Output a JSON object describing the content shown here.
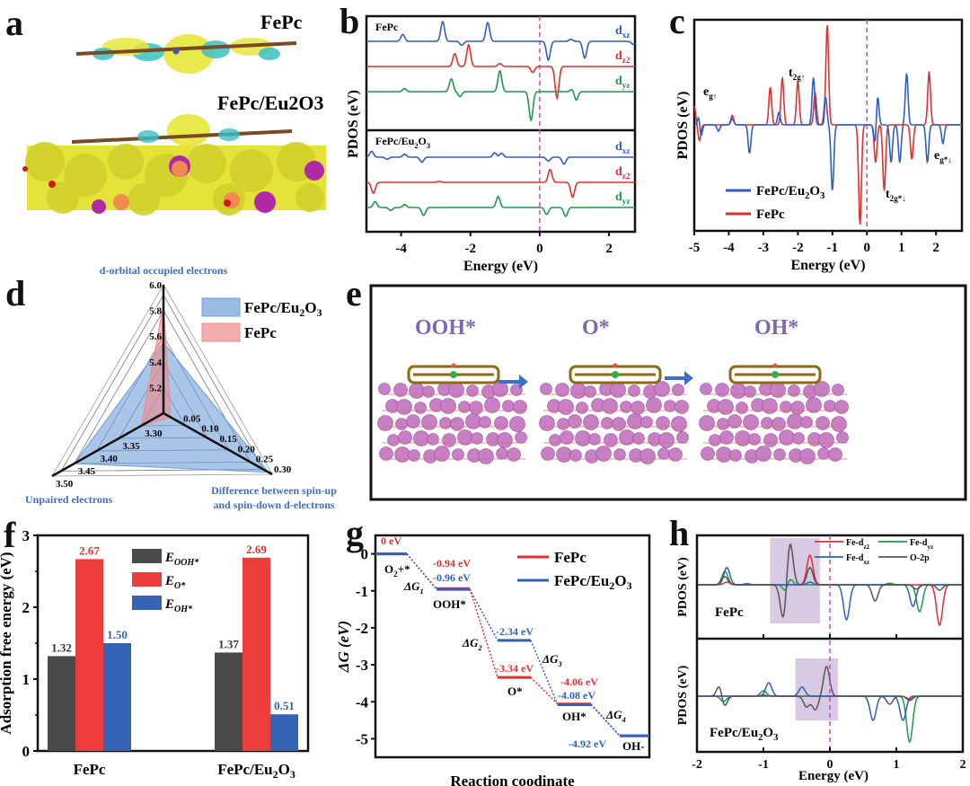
{
  "figure": {
    "panels": [
      "a",
      "b",
      "c",
      "d",
      "e",
      "f",
      "g",
      "h"
    ]
  },
  "panel_a": {
    "letter": "a",
    "labels": [
      "FePc",
      "FePc/Eu2O3"
    ],
    "description": "Charge density difference isosurfaces of FePc and FePc/Eu2O3"
  },
  "panel_e": {
    "letter": "e",
    "states": [
      "OOH*",
      "O*",
      "OH*"
    ],
    "title_color": "#7b68b5",
    "arrow_color": "#3e6fc1"
  },
  "chart_data": [
    {
      "panel": "b",
      "letter": "b",
      "type": "line",
      "title": "",
      "xlabel": "Energy (eV)",
      "ylabel": "PDOS (eV)",
      "xlim": [
        -5,
        2.75
      ],
      "xticks": [
        -4,
        -2,
        0,
        2
      ],
      "xtick_labels": [
        "-4",
        "-2",
        "0",
        "2"
      ],
      "fermi_level": 0,
      "subplots": [
        {
          "name": "FePc",
          "series": [
            {
              "name": "dxz",
              "sub": "xz",
              "color": "#2f5fbf",
              "peaks": [
                [
                  -3.95,
                  0.35
                ],
                [
                  -2.8,
                  1.0
                ],
                [
                  -2.25,
                  -0.2
                ],
                [
                  -1.5,
                  0.95
                ],
                [
                  0.25,
                  -0.95
                ],
                [
                  0.9,
                  0.1
                ],
                [
                  1.3,
                  -0.85
                ],
                [
                  2.7,
                  -0.15
                ]
              ]
            },
            {
              "name": "dz2",
              "sub": "z2",
              "color": "#e03030",
              "peaks": [
                [
                  -2.45,
                  0.65
                ],
                [
                  -2.05,
                  1.1
                ],
                [
                  -1.15,
                  0.15
                ],
                [
                  -0.2,
                  -0.3
                ],
                [
                  0.5,
                  -1.6
                ]
              ]
            },
            {
              "name": "dyz",
              "sub": "yz",
              "color": "#1f9a4a",
              "peaks": [
                [
                  -3.9,
                  0.15
                ],
                [
                  -2.55,
                  0.65
                ],
                [
                  -2.3,
                  -0.25
                ],
                [
                  -1.15,
                  1.05
                ],
                [
                  -0.25,
                  -1.45
                ],
                [
                  0.95,
                  0.15
                ],
                [
                  1.05,
                  -0.45
                ]
              ]
            }
          ]
        },
        {
          "name": "FePc/Eu2O3",
          "series": [
            {
              "name": "dxz",
              "sub": "xz",
              "color": "#2f5fbf",
              "peaks": [
                [
                  -4.85,
                  0.3
                ],
                [
                  -4.4,
                  -0.1
                ],
                [
                  -3.9,
                  0.15
                ],
                [
                  -3.4,
                  -0.25
                ],
                [
                  -1.3,
                  0.22
                ],
                [
                  -1.1,
                  0.2
                ],
                [
                  0.25,
                  -0.2
                ],
                [
                  0.7,
                  -0.35
                ]
              ]
            },
            {
              "name": "dz2",
              "sub": "z2",
              "color": "#e03030",
              "peaks": [
                [
                  -4.8,
                  -0.55
                ],
                [
                  -2.9,
                  0.05
                ],
                [
                  0.3,
                  0.65
                ],
                [
                  0.95,
                  -0.75
                ]
              ]
            },
            {
              "name": "dyz",
              "sub": "yz",
              "color": "#1f9a4a",
              "peaks": [
                [
                  -4.75,
                  0.3
                ],
                [
                  -4.3,
                  -0.15
                ],
                [
                  -3.9,
                  0.15
                ],
                [
                  -3.35,
                  -0.4
                ],
                [
                  -1.2,
                  0.55
                ],
                [
                  0.2,
                  -0.35
                ],
                [
                  0.75,
                  -0.45
                ]
              ]
            }
          ]
        }
      ]
    },
    {
      "panel": "c",
      "letter": "c",
      "type": "line",
      "xlabel": "Energy (eV)",
      "ylabel": "PDOS (eV)",
      "xlim": [
        -5,
        2.75
      ],
      "xticks": [
        -5,
        -4,
        -3,
        -2,
        -1,
        0,
        1,
        2
      ],
      "xtick_labels": [
        "-5",
        "-4",
        "-3",
        "-2",
        "-1",
        "0",
        "1",
        "2"
      ],
      "fermi_level": 0,
      "legend": {
        "position": "bottom-left",
        "entries": [
          "FePc/Eu2O3",
          "FePc"
        ]
      },
      "annotations": [
        "eg↑",
        "t2g↑",
        "eg*↓",
        "t2g*↓"
      ],
      "series": [
        {
          "name": "FePc/Eu2O3",
          "color": "#2f5fbf",
          "peaks": [
            [
              -4.85,
              0.3
            ],
            [
              -4.82,
              -0.35
            ],
            [
              -4.3,
              -0.1
            ],
            [
              -3.9,
              0.1
            ],
            [
              -3.4,
              -0.45
            ],
            [
              -2.55,
              0.2
            ],
            [
              -1.55,
              0.75
            ],
            [
              -1.2,
              0.45
            ],
            [
              -1.0,
              -1.05
            ],
            [
              0.25,
              -0.45
            ],
            [
              0.3,
              0.6
            ],
            [
              0.7,
              -0.6
            ],
            [
              0.95,
              -0.6
            ],
            [
              1.15,
              0.82
            ],
            [
              1.75,
              -0.6
            ],
            [
              2.2,
              -0.3
            ]
          ]
        },
        {
          "name": "FePc",
          "color": "#e03030",
          "peaks": [
            [
              -5.0,
              0.3
            ],
            [
              -4.85,
              -0.25
            ],
            [
              -3.9,
              0.15
            ],
            [
              -2.8,
              0.6
            ],
            [
              -2.45,
              0.75
            ],
            [
              -2.0,
              0.7
            ],
            [
              -1.5,
              0.5
            ],
            [
              -1.15,
              1.6
            ],
            [
              -0.2,
              -1.6
            ],
            [
              0.25,
              -0.6
            ],
            [
              0.5,
              -1.05
            ],
            [
              1.3,
              -0.55
            ],
            [
              1.8,
              0.85
            ]
          ]
        }
      ]
    },
    {
      "panel": "d",
      "letter": "d",
      "type": "radar",
      "axes": [
        {
          "name": "d-orbital occupied electrons",
          "range": [
            5.0,
            6.0
          ],
          "ticks": [
            "5.2",
            "5.4",
            "5.6",
            "5.8",
            "6.0"
          ]
        },
        {
          "name": "Difference between spin-up and spin-down d-electrons",
          "range": [
            0.0,
            0.3
          ],
          "ticks": [
            "0.05",
            "0.10",
            "0.15",
            "0.20",
            "0.25",
            "0.30"
          ]
        },
        {
          "name": "Unpaired electrons",
          "range": [
            3.25,
            3.5
          ],
          "ticks": [
            "3.30",
            "3.35",
            "3.40",
            "3.45",
            "3.50"
          ]
        }
      ],
      "axis_label_color": "#3e6fc1",
      "series": [
        {
          "name": "FePc/Eu2O3",
          "color": "#6f9fd8",
          "values": [
            5.55,
            0.29,
            3.45
          ]
        },
        {
          "name": "FePc",
          "color": "#f08a8a",
          "values": [
            5.85,
            0.02,
            3.3
          ]
        }
      ],
      "legend": {
        "position": "top-right",
        "entries": [
          "FePc/Eu2O3",
          "FePc"
        ]
      }
    },
    {
      "panel": "f",
      "letter": "f",
      "type": "bar",
      "ylabel": "Adsorption free energy (eV)",
      "ylim": [
        0,
        3
      ],
      "yticks": [
        "0",
        "1",
        "2",
        "3"
      ],
      "categories": [
        "FePc",
        "FePc/Eu2O3"
      ],
      "legend": {
        "position": "top-center",
        "entries": [
          "E_OOH*",
          "E_O*",
          "E_OH*"
        ]
      },
      "series": [
        {
          "name": "E_OOH*",
          "base": "E",
          "sub": "OOH*",
          "color": "#4a4a4a",
          "label_color": "#333333",
          "values": [
            1.32,
            1.37
          ],
          "labels": [
            "1.32",
            "1.37"
          ]
        },
        {
          "name": "E_O*",
          "base": "E",
          "sub": "O*",
          "color": "#ec3c3c",
          "label_color": "#e03030",
          "values": [
            2.67,
            2.69
          ],
          "labels": [
            "2.67",
            "2.69"
          ]
        },
        {
          "name": "E_OH*",
          "base": "E",
          "sub": "OH*",
          "color": "#3563b5",
          "label_color": "#3563b5",
          "values": [
            1.5,
            0.51
          ],
          "labels": [
            "1.50",
            "0.51"
          ]
        }
      ]
    },
    {
      "panel": "g",
      "letter": "g",
      "type": "line",
      "subtype": "energy-diagram",
      "xlabel": "Reaction coodinate",
      "ylabel": "ΔG (eV)",
      "ylim": [
        -5.5,
        0.5
      ],
      "yticks": [
        "0",
        "-1",
        "-2",
        "-3",
        "-4",
        "-5"
      ],
      "states": [
        "O2+*",
        "OOH*",
        "O*",
        "OH*",
        "OH-"
      ],
      "step_labels": [
        "ΔG1",
        "ΔG2",
        "ΔG3",
        "ΔG4"
      ],
      "legend": {
        "position": "top-right",
        "entries": [
          "FePc",
          "FePc/Eu2O3"
        ]
      },
      "series": [
        {
          "name": "FePc",
          "color": "#e03030",
          "values": [
            0,
            -0.94,
            -3.34,
            -4.06,
            -4.92
          ],
          "labels": [
            "0 eV",
            "-0.94 eV",
            "-3.34 eV",
            "-4.06 eV",
            ""
          ]
        },
        {
          "name": "FePc/Eu2O3",
          "color": "#2f5fbf",
          "values": [
            0,
            -0.96,
            -2.34,
            -4.08,
            -4.92
          ],
          "labels": [
            "",
            "-0.96 eV",
            "-2.34 eV",
            "-4.08 eV",
            "-4.92 eV"
          ]
        }
      ]
    },
    {
      "panel": "h",
      "letter": "h",
      "type": "line",
      "xlabel": "Energy (eV)",
      "ylabel": "PDOS (eV)",
      "xlim": [
        -2,
        2
      ],
      "xticks": [
        -2,
        -1,
        0,
        1,
        2
      ],
      "xtick_labels": [
        "-2",
        "-1",
        "0",
        "1",
        "2"
      ],
      "fermi_level": 0,
      "legend": {
        "position": "top-right",
        "entries": [
          "Fe-dz2",
          "Fe-dyz",
          "Fe-dxz",
          "O-2p"
        ]
      },
      "highlight_color": "#c9b3d9",
      "subplots": [
        {
          "name": "FePc",
          "highlight": [
            -0.9,
            -0.15
          ],
          "series": [
            {
              "name": "Fe-dz2",
              "color": "#e03030",
              "peaks": [
                [
                  -1.55,
                  0.05
                ],
                [
                  -0.3,
                  0.55
                ],
                [
                  1.65,
                  -0.75
                ]
              ]
            },
            {
              "name": "Fe-dyz",
              "color": "#1f9a4a",
              "peaks": [
                [
                  -1.58,
                  0.25
                ],
                [
                  -0.62,
                  0.25
                ],
                [
                  -0.65,
                  -0.25
                ],
                [
                  0.9,
                  0.03
                ],
                [
                  1.35,
                  -0.5
                ]
              ]
            },
            {
              "name": "Fe-dxz",
              "color": "#2f5fbf",
              "peaks": [
                [
                  -1.55,
                  0.32
                ],
                [
                  -1.25,
                  0.02
                ],
                [
                  -0.3,
                  0.05
                ],
                [
                  0.25,
                  -0.65
                ],
                [
                  1.25,
                  -0.4
                ]
              ]
            },
            {
              "name": "O-2p",
              "color": "#555555",
              "peaks": [
                [
                  -1.58,
                  0.15
                ],
                [
                  -0.6,
                  0.8
                ],
                [
                  -0.7,
                  -0.65
                ],
                [
                  -0.3,
                  0.32
                ],
                [
                  0.68,
                  -0.3
                ],
                [
                  1.3,
                  -0.08
                ],
                [
                  1.65,
                  -0.1
                ]
              ]
            }
          ]
        },
        {
          "name": "FePc/Eu2O3",
          "highlight": [
            -0.52,
            0.12
          ],
          "series": [
            {
              "name": "Fe-dz2",
              "color": "#e03030",
              "peaks": [
                [
                  -1.0,
                  0.02
                ],
                [
                  1.2,
                  -0.05
                ]
              ]
            },
            {
              "name": "Fe-dyz",
              "color": "#1f9a4a",
              "peaks": [
                [
                  -1.6,
                  -0.1
                ],
                [
                  -1.0,
                  0.1
                ],
                [
                  1.2,
                  -0.85
                ]
              ]
            },
            {
              "name": "Fe-dxz",
              "color": "#2f5fbf",
              "peaks": [
                [
                  -0.92,
                  0.25
                ],
                [
                  -0.42,
                  0.17
                ],
                [
                  0.65,
                  -0.45
                ],
                [
                  1.1,
                  -0.45
                ]
              ]
            },
            {
              "name": "O-2p",
              "color": "#555555",
              "peaks": [
                [
                  -1.65,
                  0.28
                ],
                [
                  -1.6,
                  -0.28
                ],
                [
                  -0.35,
                  -0.2
                ],
                [
                  -0.22,
                  -0.25
                ],
                [
                  -0.05,
                  0.55
                ],
                [
                  0.9,
                  -0.15
                ],
                [
                  1.2,
                  -0.08
                ]
              ]
            }
          ]
        }
      ]
    }
  ]
}
